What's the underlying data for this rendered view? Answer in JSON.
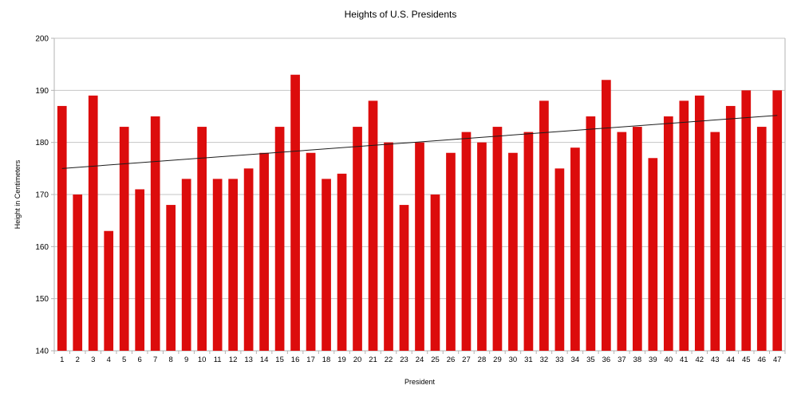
{
  "chart_data": {
    "type": "bar",
    "title": "Heights of U.S. Presidents",
    "xlabel": "President",
    "ylabel": "Height in Centimeters",
    "categories": [
      1,
      2,
      3,
      4,
      5,
      6,
      7,
      8,
      9,
      10,
      11,
      12,
      13,
      14,
      15,
      16,
      17,
      18,
      19,
      20,
      21,
      22,
      23,
      24,
      25,
      26,
      27,
      28,
      29,
      30,
      31,
      32,
      33,
      34,
      35,
      36,
      37,
      38,
      39,
      40,
      41,
      42,
      43,
      44,
      45,
      46,
      47
    ],
    "values": [
      187,
      170,
      189,
      163,
      183,
      171,
      185,
      168,
      173,
      183,
      173,
      173,
      175,
      178,
      183,
      193,
      178,
      173,
      174,
      183,
      188,
      180,
      168,
      180,
      170,
      178,
      182,
      180,
      183,
      178,
      182,
      188,
      175,
      179,
      185,
      192,
      182,
      183,
      177,
      185,
      188,
      189,
      182,
      187,
      190,
      183,
      190
    ],
    "ylim": [
      140,
      200
    ],
    "yticks": [
      140,
      150,
      160,
      170,
      180,
      190,
      200
    ],
    "grid": "horizontal",
    "legend": "none",
    "trendline": {
      "start_category": 1,
      "start_value": 175,
      "end_category": 47,
      "end_value": 185.2
    },
    "colors": {
      "bar": "#dc0c0c",
      "grid": "#c6c6c6",
      "axis": "#b3b3b3",
      "trend": "#1c1c1c",
      "text": "#000000"
    }
  }
}
